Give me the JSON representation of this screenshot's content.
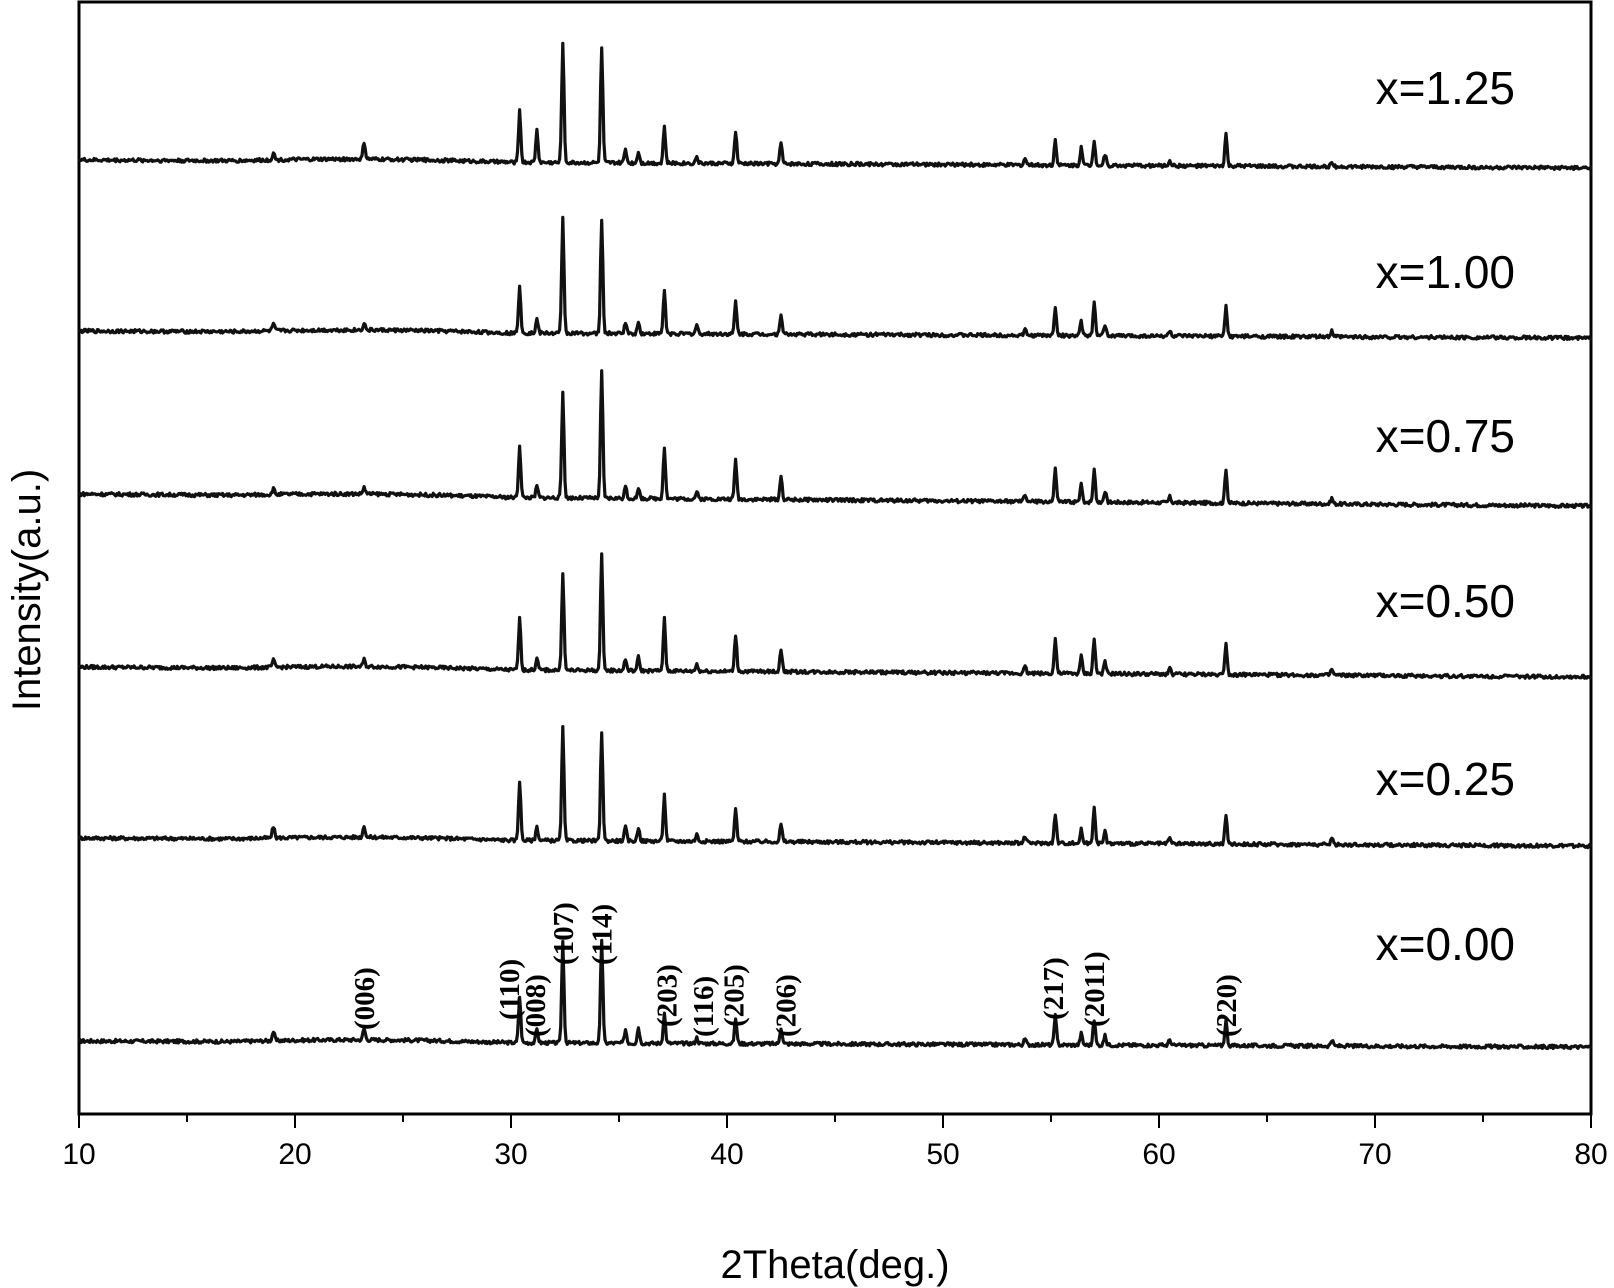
{
  "chart_data": {
    "type": "line",
    "xlabel": "2Theta(deg.)",
    "ylabel": "Intensity(a.u.)",
    "xlim": [
      10,
      80
    ],
    "x_ticks": [
      "10",
      "20",
      "30",
      "40",
      "50",
      "60",
      "70",
      "80"
    ],
    "y_ticks": "none",
    "grid": false,
    "legend": "labels placed at right of each stacked pattern",
    "series": [
      {
        "name": "x=0.00",
        "peaks": [
          [
            19.0,
            0.08
          ],
          [
            23.2,
            0.1
          ],
          [
            30.4,
            0.4
          ],
          [
            31.2,
            0.12
          ],
          [
            32.4,
            0.88
          ],
          [
            34.2,
            0.9
          ],
          [
            35.3,
            0.12
          ],
          [
            35.9,
            0.14
          ],
          [
            37.1,
            0.26
          ],
          [
            38.6,
            0.05
          ],
          [
            40.4,
            0.22
          ],
          [
            42.5,
            0.14
          ],
          [
            53.8,
            0.05
          ],
          [
            55.2,
            0.25
          ],
          [
            56.4,
            0.1
          ],
          [
            57.0,
            0.22
          ],
          [
            57.5,
            0.08
          ],
          [
            60.5,
            0.05
          ],
          [
            63.1,
            0.22
          ],
          [
            68.0,
            0.05
          ]
        ]
      },
      {
        "name": "x=0.25",
        "peaks": [
          [
            19.0,
            0.1
          ],
          [
            23.2,
            0.1
          ],
          [
            30.4,
            0.52
          ],
          [
            31.2,
            0.12
          ],
          [
            32.4,
            0.98
          ],
          [
            34.2,
            0.95
          ],
          [
            35.3,
            0.12
          ],
          [
            35.9,
            0.12
          ],
          [
            37.1,
            0.4
          ],
          [
            38.6,
            0.06
          ],
          [
            40.4,
            0.28
          ],
          [
            42.5,
            0.15
          ],
          [
            53.8,
            0.06
          ],
          [
            55.2,
            0.25
          ],
          [
            56.4,
            0.12
          ],
          [
            57.0,
            0.32
          ],
          [
            57.5,
            0.1
          ],
          [
            60.5,
            0.05
          ],
          [
            63.1,
            0.25
          ],
          [
            68.0,
            0.06
          ]
        ]
      },
      {
        "name": "x=0.50",
        "peaks": [
          [
            19.0,
            0.06
          ],
          [
            23.2,
            0.06
          ],
          [
            30.4,
            0.45
          ],
          [
            31.2,
            0.1
          ],
          [
            32.4,
            0.85
          ],
          [
            34.2,
            1.0
          ],
          [
            35.3,
            0.1
          ],
          [
            35.9,
            0.12
          ],
          [
            37.1,
            0.45
          ],
          [
            38.6,
            0.06
          ],
          [
            40.4,
            0.32
          ],
          [
            42.5,
            0.2
          ],
          [
            53.8,
            0.06
          ],
          [
            55.2,
            0.3
          ],
          [
            56.4,
            0.15
          ],
          [
            57.0,
            0.3
          ],
          [
            57.5,
            0.1
          ],
          [
            60.5,
            0.05
          ],
          [
            63.1,
            0.28
          ],
          [
            68.0,
            0.05
          ]
        ]
      },
      {
        "name": "x=0.75",
        "peaks": [
          [
            19.0,
            0.05
          ],
          [
            23.2,
            0.06
          ],
          [
            30.4,
            0.45
          ],
          [
            31.2,
            0.1
          ],
          [
            32.4,
            0.92
          ],
          [
            34.2,
            1.1
          ],
          [
            35.3,
            0.1
          ],
          [
            35.9,
            0.08
          ],
          [
            37.1,
            0.45
          ],
          [
            38.6,
            0.06
          ],
          [
            40.4,
            0.35
          ],
          [
            42.5,
            0.2
          ],
          [
            53.8,
            0.06
          ],
          [
            55.2,
            0.28
          ],
          [
            56.4,
            0.15
          ],
          [
            57.0,
            0.28
          ],
          [
            57.5,
            0.1
          ],
          [
            60.5,
            0.05
          ],
          [
            63.1,
            0.3
          ],
          [
            68.0,
            0.05
          ]
        ]
      },
      {
        "name": "x=1.00",
        "peaks": [
          [
            19.0,
            0.06
          ],
          [
            23.2,
            0.06
          ],
          [
            30.4,
            0.42
          ],
          [
            31.2,
            0.12
          ],
          [
            32.4,
            1.0
          ],
          [
            34.2,
            0.98
          ],
          [
            35.3,
            0.1
          ],
          [
            35.9,
            0.1
          ],
          [
            37.1,
            0.38
          ],
          [
            38.6,
            0.08
          ],
          [
            40.4,
            0.28
          ],
          [
            42.5,
            0.18
          ],
          [
            53.8,
            0.05
          ],
          [
            55.2,
            0.25
          ],
          [
            56.4,
            0.12
          ],
          [
            57.0,
            0.28
          ],
          [
            57.5,
            0.1
          ],
          [
            60.5,
            0.05
          ],
          [
            63.1,
            0.26
          ],
          [
            68.0,
            0.05
          ]
        ]
      },
      {
        "name": "x=1.25",
        "peaks": [
          [
            19.0,
            0.06
          ],
          [
            23.2,
            0.15
          ],
          [
            30.4,
            0.45
          ],
          [
            31.2,
            0.28
          ],
          [
            32.4,
            1.05
          ],
          [
            34.2,
            1.0
          ],
          [
            35.3,
            0.12
          ],
          [
            35.9,
            0.1
          ],
          [
            37.1,
            0.32
          ],
          [
            38.6,
            0.06
          ],
          [
            40.4,
            0.28
          ],
          [
            42.5,
            0.18
          ],
          [
            53.8,
            0.06
          ],
          [
            55.2,
            0.22
          ],
          [
            56.4,
            0.15
          ],
          [
            57.0,
            0.22
          ],
          [
            57.5,
            0.1
          ],
          [
            60.5,
            0.05
          ],
          [
            63.1,
            0.28
          ],
          [
            68.0,
            0.05
          ]
        ]
      }
    ],
    "annotations": [
      {
        "text": "(006)",
        "x": 23.2
      },
      {
        "text": "(110)",
        "x": 29.9
      },
      {
        "text": "(008)",
        "x": 31.1
      },
      {
        "text": "(107)",
        "x": 32.4
      },
      {
        "text": "(114)",
        "x": 34.2
      },
      {
        "text": "(203)",
        "x": 37.2
      },
      {
        "text": "(116)",
        "x": 38.9
      },
      {
        "text": "(205)",
        "x": 40.3
      },
      {
        "text": "(206)",
        "x": 42.7
      },
      {
        "text": "(217)",
        "x": 55.1
      },
      {
        "text": "(2011)",
        "x": 57.0
      },
      {
        "text": "(220)",
        "x": 63.1
      }
    ]
  }
}
